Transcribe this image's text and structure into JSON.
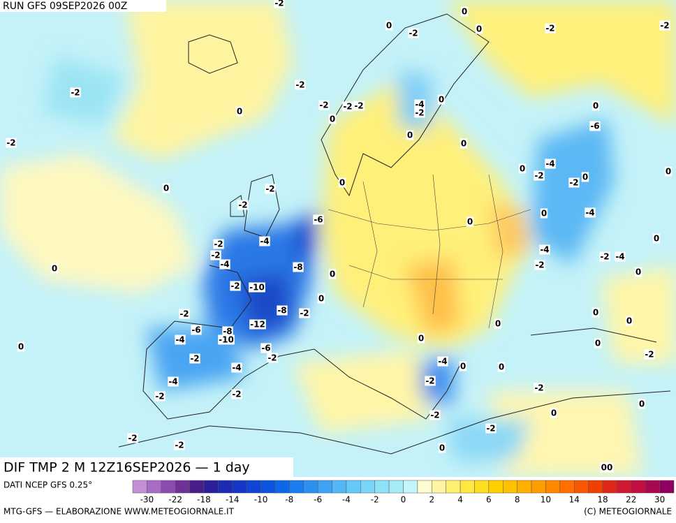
{
  "header": {
    "run": "RUN GFS 09SEP2026 00Z"
  },
  "title": "DIF TMP 2 M 12Z16SEP2026 — 1 day",
  "footer": {
    "source": "DATI NCEP GFS 0.25°",
    "credit": "MTG-GFS — ELABORAZIONE WWW.METEOGIORNALE.IT",
    "copyright": "(C) METEOGIORNALE"
  },
  "colorbar": {
    "colors": [
      "#c58fd6",
      "#a86cc4",
      "#8c4caf",
      "#6f3097",
      "#4a1e8a",
      "#2a1f9a",
      "#1c2bb3",
      "#1537c6",
      "#1044d4",
      "#0a55e0",
      "#0d68e8",
      "#1a7cee",
      "#2b90f2",
      "#3fa3f5",
      "#52b6f7",
      "#64c8f8",
      "#78d6f8",
      "#8ee2f8",
      "#a6ecf8",
      "#c4f5fa",
      "#fffbd0",
      "#fff5a0",
      "#fff070",
      "#ffe840",
      "#ffdd20",
      "#ffd000",
      "#ffc000",
      "#ffaf00",
      "#ff9c00",
      "#ff8800",
      "#ff7000",
      "#f85800",
      "#f04000",
      "#e02818",
      "#d01830",
      "#c01040",
      "#a80850",
      "#900060"
    ],
    "ticks": [
      "-30",
      "-22",
      "-18",
      "-14",
      "-10",
      "-8",
      "-6",
      "-4",
      "-2",
      "0",
      "2",
      "4",
      "6",
      "8",
      "10",
      "14",
      "18",
      "22",
      "30"
    ]
  },
  "map_labels": [
    "-2",
    "0",
    "0",
    "-2",
    "0",
    "-2",
    "-2",
    "-2",
    "-2",
    "0",
    "-2",
    "-2",
    "-2",
    "-4",
    "-2",
    "0",
    "0",
    "0",
    "-6",
    "0",
    "-2",
    "0",
    "0",
    "-4",
    "-2",
    "-2",
    "0",
    "0",
    "-2",
    "0",
    "0",
    "-2",
    "-6",
    "-4",
    "0",
    "0",
    "-4",
    "-2",
    "-2",
    "-4",
    "-4",
    "-2",
    "-2",
    "-4",
    "0",
    "-8",
    "0",
    "0",
    "-2",
    "-10",
    "0",
    "0",
    "-8",
    "-2",
    "-2",
    "0",
    "-12",
    "0",
    "-6",
    "-8",
    "0",
    "-4",
    "-10",
    "0",
    "0",
    "0",
    "-6",
    "-2",
    "-2",
    "-4",
    "0",
    "0",
    "-2",
    "-4",
    "-2",
    "-4",
    "-2",
    "-2",
    "-2",
    "0",
    "-2",
    "0",
    "-2",
    "-2",
    "-2",
    "0",
    "00"
  ]
}
